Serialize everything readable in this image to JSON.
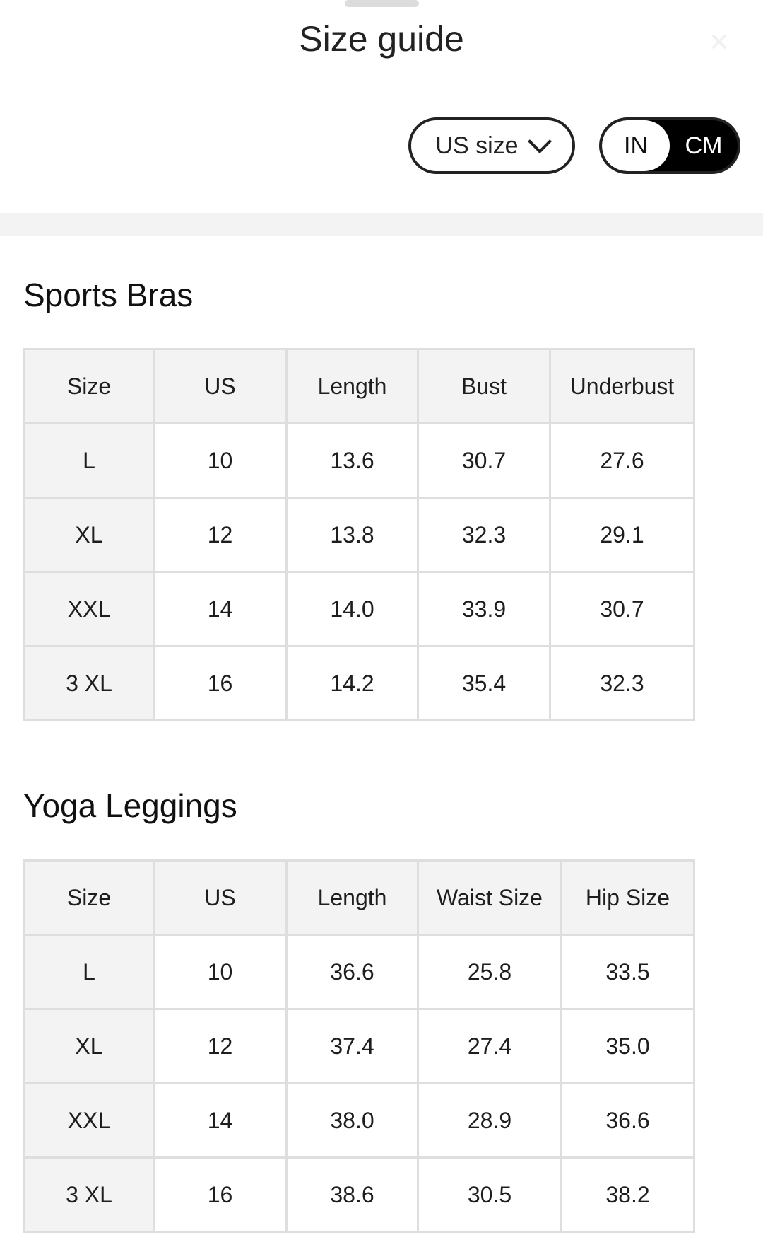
{
  "header": {
    "title": "Size guide",
    "close_icon": "close-icon"
  },
  "controls": {
    "size_system": "US size",
    "units": [
      "IN",
      "CM"
    ],
    "selected_unit": "CM"
  },
  "sections": [
    {
      "title": "Sports Bras",
      "columns": [
        "Size",
        "US",
        "Length",
        "Bust",
        "Underbust"
      ],
      "rows": [
        [
          "L",
          "10",
          "13.6",
          "30.7",
          "27.6"
        ],
        [
          "XL",
          "12",
          "13.8",
          "32.3",
          "29.1"
        ],
        [
          "XXL",
          "14",
          "14.0",
          "33.9",
          "30.7"
        ],
        [
          "3 XL",
          "16",
          "14.2",
          "35.4",
          "32.3"
        ]
      ]
    },
    {
      "title": "Yoga Leggings",
      "columns": [
        "Size",
        "US",
        "Length",
        "Waist Size",
        "Hip Size"
      ],
      "rows": [
        [
          "L",
          "10",
          "36.6",
          "25.8",
          "33.5"
        ],
        [
          "XL",
          "12",
          "37.4",
          "27.4",
          "35.0"
        ],
        [
          "XXL",
          "14",
          "38.0",
          "28.9",
          "36.6"
        ],
        [
          "3 XL",
          "16",
          "38.6",
          "30.5",
          "38.2"
        ]
      ]
    }
  ]
}
